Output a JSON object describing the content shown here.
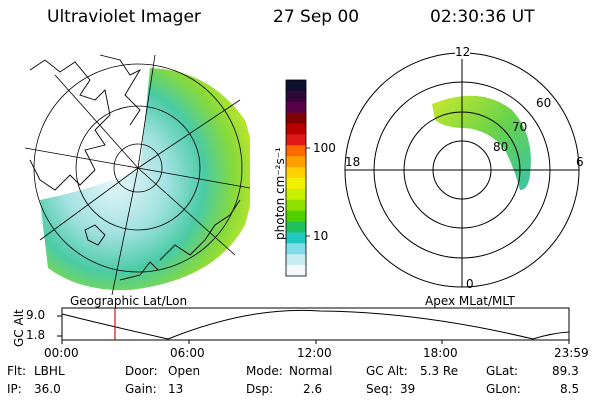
{
  "header": {
    "instrument": "Ultraviolet Imager",
    "date": "27 Sep 00",
    "time": "02:30:36 UT"
  },
  "colorbar": {
    "unit_label": "photon cm⁻²s⁻¹",
    "ticks": [
      "100",
      "10"
    ],
    "colors": [
      "#101030",
      "#300838",
      "#58004a",
      "#800000",
      "#b80000",
      "#e01818",
      "#ff6a00",
      "#ffa000",
      "#ffd000",
      "#f0f000",
      "#c8f000",
      "#90e000",
      "#50d000",
      "#20c060",
      "#20c8c0",
      "#80dce8",
      "#c8ecf4",
      "#f4f8fb"
    ]
  },
  "geo_map": {
    "label": "Geographic Lat/Lon"
  },
  "polar_map": {
    "label": "Apex MLat/MLT",
    "mlt_labels": {
      "top": "12",
      "right": "6",
      "bottom": "0",
      "left": "18"
    },
    "lat_labels": [
      "60",
      "70",
      "80"
    ]
  },
  "timeline": {
    "y_axis_label": "GC Alt",
    "y_ticks": [
      "9.0",
      "1.8"
    ],
    "x_ticks": [
      "00:00",
      "06:00",
      "12:00",
      "18:00",
      "23:59"
    ],
    "marker_time": "02:30"
  },
  "info": {
    "flt_label": "Flt:",
    "flt_value": "LBHL",
    "ip_label": "IP:",
    "ip_value": "36.0",
    "door_label": "Door:",
    "door_value": "Open",
    "gain_label": "Gain:",
    "gain_value": "13",
    "mode_label": "Mode:",
    "mode_value": "Normal",
    "dsp_label": "Dsp:",
    "dsp_value": "2.6",
    "gcalt_label": "GC Alt:",
    "gcalt_value": "5.3 Re",
    "seq_label": "Seq:",
    "seq_value": "39",
    "glat_label": "GLat:",
    "glat_value": "89.3",
    "glon_label": "GLon:",
    "glon_value": "8.5"
  }
}
